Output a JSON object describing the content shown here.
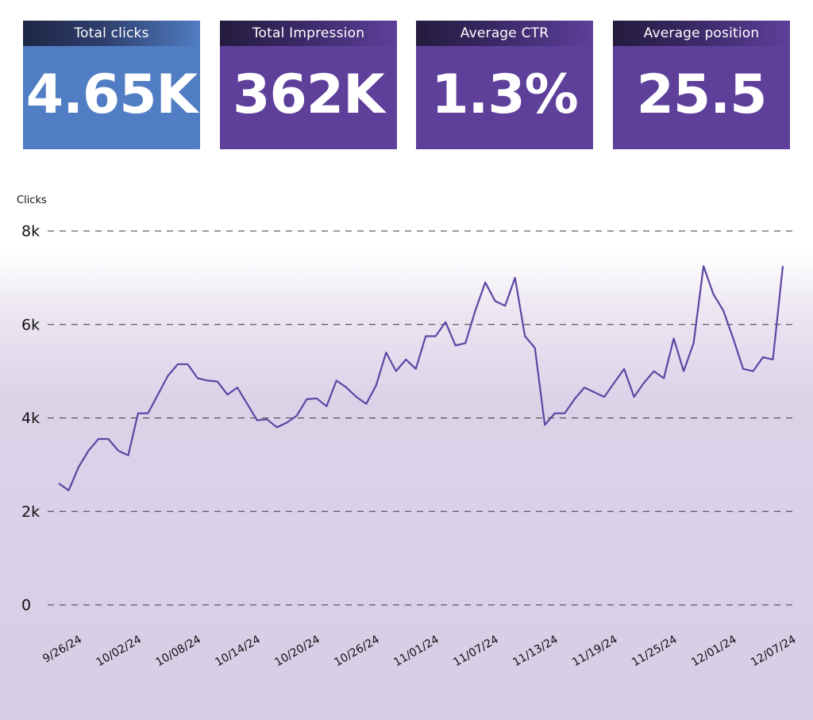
{
  "kpis": [
    {
      "label": "Total clicks",
      "value": "4.65K",
      "color": "#507dc3"
    },
    {
      "label": "Total Impression",
      "value": "362K",
      "color": "#5e3f9a"
    },
    {
      "label": "Average CTR",
      "value": "1.3%",
      "color": "#5e3f9a"
    },
    {
      "label": "Average position",
      "value": "25.5",
      "color": "#5e3f9a"
    }
  ],
  "chart_data": {
    "type": "line",
    "ylabel": "Clicks",
    "ylim": [
      0,
      8000
    ],
    "y_ticks": [
      {
        "value": 0,
        "label": "0"
      },
      {
        "value": 2000,
        "label": "2k"
      },
      {
        "value": 4000,
        "label": "4k"
      },
      {
        "value": 6000,
        "label": "6k"
      },
      {
        "value": 8000,
        "label": "8k"
      }
    ],
    "x_tick_labels": [
      "9/26/24",
      "10/02/24",
      "10/08/24",
      "10/14/24",
      "10/20/24",
      "10/26/24",
      "11/01/24",
      "11/07/24",
      "11/13/24",
      "11/19/24",
      "11/25/24",
      "12/01/24",
      "12/07/24"
    ],
    "grid": "horizontal dashed",
    "line_color": "#5d45a3",
    "series": [
      {
        "values": [
          2600,
          2450,
          2950,
          3300,
          3550,
          3550,
          3300,
          3200,
          4100,
          4100,
          4500,
          4900,
          5150,
          5150,
          4850,
          4800,
          4780,
          4500,
          4650,
          4300,
          3950,
          3970,
          3800,
          3900,
          4050,
          4400,
          4420,
          4250,
          4800,
          4650,
          4450,
          4300,
          4700,
          5400,
          5000,
          5250,
          5050,
          5750,
          5750,
          6050,
          5550,
          5600,
          6300,
          6900,
          6500,
          6400,
          7000,
          5750,
          5500,
          3850,
          4100,
          4100,
          4400,
          4650,
          4550,
          4450,
          4750,
          5050,
          4450,
          4750,
          5000,
          4850,
          5700,
          5000,
          5600,
          7250,
          6650,
          6300,
          5700,
          5050,
          5000,
          5300,
          5250,
          7250
        ]
      }
    ]
  }
}
